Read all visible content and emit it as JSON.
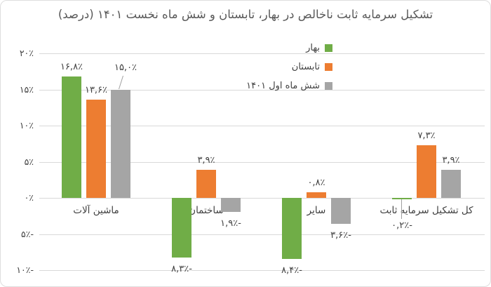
{
  "window": {
    "background": "#FFFFFF",
    "border_color": "#DEDEDE"
  },
  "chart_data": {
    "type": "bar",
    "title": "تشکیل سرمایه ثابت ناخالص در بهار، تابستان و شش ماه نخست ۱۴۰۱ (درصد)",
    "title_color": "#595959",
    "direction": "rtl",
    "categories": [
      "ماشین آلات",
      "ساختمان",
      "سایر",
      "کل تشکیل سرمایه ثابت"
    ],
    "series": [
      {
        "name": "بهار",
        "color": "#70AD47",
        "values": [
          16.8,
          -8.3,
          -8.4,
          -0.2
        ],
        "value_labels": [
          "۱۶,۸٪",
          "۸,۳٪-",
          "۸,۴٪-",
          "۰,۲٪-"
        ]
      },
      {
        "name": "تابستان",
        "color": "#ED7D31",
        "values": [
          13.6,
          3.9,
          0.8,
          7.3
        ],
        "value_labels": [
          "۱۳,۶٪",
          "۳,۹٪",
          "۰,۸٪",
          "۷,۳٪"
        ]
      },
      {
        "name": "شش ماه اول ۱۴۰۱",
        "color": "#A5A5A5",
        "values": [
          15.0,
          -1.9,
          -3.6,
          3.9
        ],
        "value_labels": [
          "۱۵,۰٪",
          "۱,۹٪-",
          "۳,۶٪-",
          "۳,۹٪"
        ]
      }
    ],
    "y_axis": {
      "min": -10,
      "max": 20,
      "step": 5,
      "ticks": [
        20,
        15,
        10,
        5,
        0,
        -5,
        -10
      ],
      "tick_labels": [
        "۲۰٪",
        "۱۵٪",
        "۱۰٪",
        "۵٪",
        "۰٪",
        "۵٪-",
        "۱۰٪-"
      ],
      "unit": "percent"
    },
    "grid": true,
    "gridline_color": "#D9D9D9",
    "label_color": "#404040",
    "leader_line_color": "#A0A0A0",
    "legend": {
      "position": "top-right"
    },
    "callouts": [
      {
        "series": 2,
        "category": 0,
        "leader": "slant-up-right"
      },
      {
        "series": 0,
        "category": 3,
        "leader": "vertical-down"
      }
    ]
  }
}
